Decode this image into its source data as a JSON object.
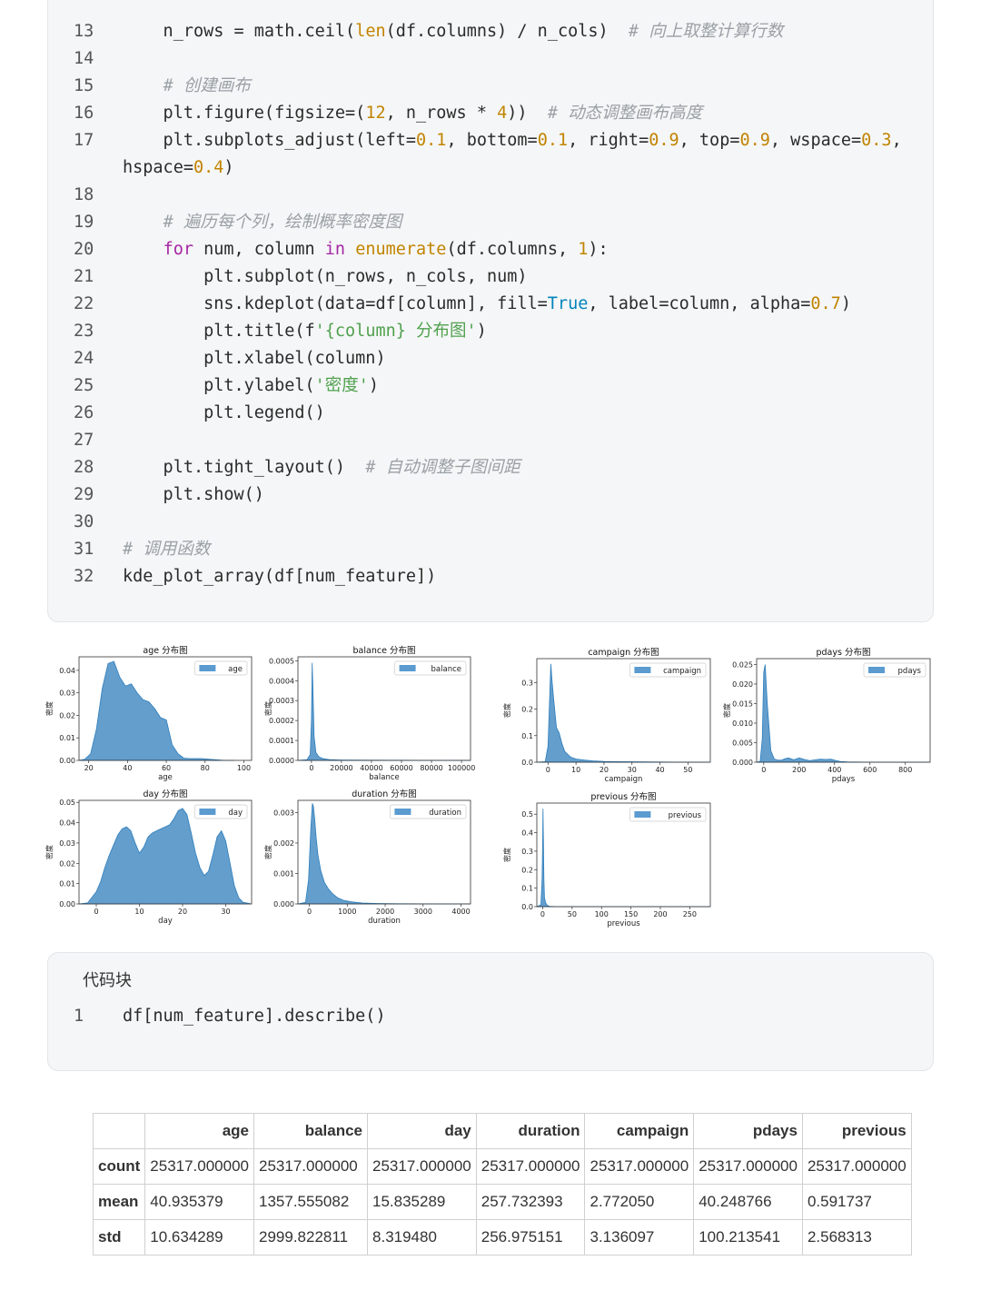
{
  "code_top": {
    "lines": [
      {
        "n": "13",
        "t": "    n_rows = math.ceil(len(df.columns) / n_cols)  # 向上取整计算行数"
      },
      {
        "n": "14",
        "t": ""
      },
      {
        "n": "15",
        "t": "    # 创建画布"
      },
      {
        "n": "16",
        "t": "    plt.figure(figsize=(12, n_rows * 4))  # 动态调整画布高度"
      },
      {
        "n": "17",
        "t": "    plt.subplots_adjust(left=0.1, bottom=0.1, right=0.9, top=0.9, wspace=0.3,"
      },
      {
        "n": "",
        "t": "hspace=0.4)"
      },
      {
        "n": "18",
        "t": ""
      },
      {
        "n": "19",
        "t": "    # 遍历每个列，绘制概率密度图"
      },
      {
        "n": "20",
        "t": "    for num, column in enumerate(df.columns, 1):"
      },
      {
        "n": "21",
        "t": "        plt.subplot(n_rows, n_cols, num)"
      },
      {
        "n": "22",
        "t": "        sns.kdeplot(data=df[column], fill=True, label=column, alpha=0.7)"
      },
      {
        "n": "23",
        "t": "        plt.title(f'{column} 分布图')"
      },
      {
        "n": "24",
        "t": "        plt.xlabel(column)"
      },
      {
        "n": "25",
        "t": "        plt.ylabel('密度')"
      },
      {
        "n": "26",
        "t": "        plt.legend()"
      },
      {
        "n": "27",
        "t": ""
      },
      {
        "n": "28",
        "t": "    plt.tight_layout()  # 自动调整子图间距"
      },
      {
        "n": "29",
        "t": "    plt.show()"
      },
      {
        "n": "30",
        "t": ""
      },
      {
        "n": "31",
        "t": "# 调用函数"
      },
      {
        "n": "32",
        "t": "kde_plot_array(df[num_feature])"
      }
    ]
  },
  "code_bottom": {
    "title": "代码块",
    "lines": [
      {
        "n": "1",
        "t": "df[num_feature].describe()"
      }
    ]
  },
  "colors": {
    "fill": "#2f7ebc",
    "legend_patch": "#5b9bd0"
  },
  "chart_data": [
    {
      "type": "area",
      "title": "age 分布图",
      "xlabel": "age",
      "ylabel": "密度",
      "legend": "age",
      "xlim": [
        15,
        104
      ],
      "ylim": [
        0,
        0.046
      ],
      "xticks": [
        20,
        40,
        60,
        80,
        100
      ],
      "yticks": [
        "0.00",
        "0.01",
        "0.02",
        "0.03",
        "0.04"
      ],
      "x": [
        15,
        18,
        21,
        24,
        27,
        30,
        33,
        36,
        39,
        42,
        45,
        48,
        51,
        54,
        57,
        60,
        63,
        66,
        69,
        72,
        75,
        78,
        81,
        84,
        87,
        90,
        95
      ],
      "y": [
        0,
        0.0005,
        0.003,
        0.014,
        0.032,
        0.043,
        0.044,
        0.037,
        0.033,
        0.034,
        0.03,
        0.027,
        0.026,
        0.023,
        0.019,
        0.018,
        0.007,
        0.003,
        0.001,
        0.0008,
        0.0008,
        0.0008,
        0.0006,
        0.0004,
        0.0002,
        0,
        0
      ]
    },
    {
      "type": "area",
      "title": "balance 分布图",
      "xlabel": "balance",
      "ylabel": "密度",
      "legend": "balance",
      "xlim": [
        -9000,
        106000
      ],
      "ylim": [
        0,
        0.00052
      ],
      "xticks": [
        0,
        20000,
        40000,
        60000,
        80000,
        100000
      ],
      "yticks": [
        "0.0000",
        "0.0001",
        "0.0002",
        "0.0003",
        "0.0004",
        "0.0005"
      ],
      "x": [
        -9000,
        -3000,
        -800,
        0,
        500,
        1000,
        1800,
        3000,
        5000,
        8000,
        12000,
        20000,
        40000,
        70000,
        106000
      ],
      "y": [
        0,
        3e-06,
        3e-05,
        0.0002,
        0.00049,
        0.00036,
        0.00012,
        4e-05,
        1.8e-05,
        8e-06,
        4e-06,
        2e-06,
        1e-06,
        4e-07,
        0
      ]
    },
    {
      "type": "area",
      "title": "campaign 分布图",
      "xlabel": "campaign",
      "ylabel": "密度",
      "legend": "campaign",
      "xlim": [
        -4,
        58
      ],
      "ylim": [
        0,
        0.39
      ],
      "xticks": [
        0,
        10,
        20,
        30,
        40,
        50
      ],
      "yticks": [
        "0.0",
        "0.1",
        "0.2",
        "0.3"
      ],
      "x": [
        -4,
        -1,
        0,
        1,
        1.5,
        2,
        3,
        4,
        5,
        6,
        8,
        10,
        13,
        16,
        20,
        25,
        35,
        45,
        58
      ],
      "y": [
        0,
        0.002,
        0.06,
        0.37,
        0.3,
        0.24,
        0.13,
        0.11,
        0.07,
        0.04,
        0.02,
        0.012,
        0.008,
        0.005,
        0.003,
        0.002,
        0.001,
        0.0005,
        0
      ]
    },
    {
      "type": "area",
      "title": "pdays 分布图",
      "xlabel": "pdays",
      "ylabel": "密度",
      "legend": "pdays",
      "xlim": [
        -40,
        940
      ],
      "ylim": [
        0,
        0.0265
      ],
      "xticks": [
        0,
        200,
        400,
        600,
        800
      ],
      "yticks": [
        "0.000",
        "0.005",
        "0.010",
        "0.015",
        "0.020",
        "0.025"
      ],
      "x": [
        -40,
        -20,
        -8,
        0,
        8,
        20,
        40,
        60,
        80,
        100,
        120,
        140,
        170,
        200,
        230,
        260,
        290,
        320,
        350,
        380,
        400,
        430,
        470,
        520,
        600,
        940
      ],
      "y": [
        0,
        0.0002,
        0.006,
        0.023,
        0.025,
        0.015,
        0.003,
        0.0008,
        0.0005,
        0.0005,
        0.0009,
        0.0011,
        0.0006,
        0.0011,
        0.0007,
        0.0004,
        0.0006,
        0.0008,
        0.0007,
        0.0008,
        0.0005,
        0.0002,
        0.0001,
        5e-05,
        0,
        0
      ]
    },
    {
      "type": "area",
      "title": "day 分布图",
      "xlabel": "day",
      "ylabel": "密度",
      "legend": "day",
      "xlim": [
        -4,
        36
      ],
      "ylim": [
        0,
        0.051
      ],
      "xticks": [
        0,
        10,
        20,
        30
      ],
      "yticks": [
        "0.00",
        "0.01",
        "0.02",
        "0.03",
        "0.04",
        "0.05"
      ],
      "x": [
        -4,
        -2,
        0,
        1,
        2,
        3,
        4,
        5,
        6,
        7,
        8,
        9,
        10,
        11,
        12,
        13,
        14,
        15,
        16,
        17,
        18,
        19,
        20,
        21,
        22,
        23,
        24,
        25,
        26,
        27,
        28,
        29,
        30,
        31,
        32,
        33,
        34,
        36
      ],
      "y": [
        0,
        0.0005,
        0.006,
        0.011,
        0.018,
        0.024,
        0.029,
        0.034,
        0.037,
        0.038,
        0.036,
        0.03,
        0.025,
        0.028,
        0.033,
        0.035,
        0.036,
        0.037,
        0.038,
        0.039,
        0.042,
        0.046,
        0.047,
        0.044,
        0.035,
        0.025,
        0.018,
        0.014,
        0.016,
        0.024,
        0.033,
        0.036,
        0.031,
        0.02,
        0.009,
        0.003,
        0.0008,
        0
      ]
    },
    {
      "type": "area",
      "title": "duration 分布图",
      "xlabel": "duration",
      "ylabel": "密度",
      "legend": "duration",
      "xlim": [
        -300,
        4250
      ],
      "ylim": [
        0,
        0.0034
      ],
      "xticks": [
        0,
        1000,
        2000,
        3000,
        4000
      ],
      "yticks": [
        "0.000",
        "0.001",
        "0.002",
        "0.003"
      ],
      "x": [
        -300,
        -100,
        -20,
        40,
        80,
        110,
        140,
        180,
        230,
        300,
        400,
        500,
        600,
        750,
        900,
        1100,
        1400,
        1800,
        2300,
        3000,
        4250
      ],
      "y": [
        0,
        5e-05,
        0.0008,
        0.0025,
        0.0033,
        0.0032,
        0.0028,
        0.0022,
        0.0016,
        0.0011,
        0.0007,
        0.0005,
        0.00035,
        0.0002,
        0.00012,
        7e-05,
        3e-05,
        1.5e-05,
        7e-06,
        2e-06,
        0
      ]
    },
    {
      "type": "area",
      "title": "previous 分布图",
      "xlabel": "previous",
      "ylabel": "密度",
      "legend": "previous",
      "xlim": [
        -10,
        285
      ],
      "ylim": [
        0,
        0.56
      ],
      "xticks": [
        0,
        50,
        100,
        150,
        200,
        250
      ],
      "yticks": [
        "0.0",
        "0.1",
        "0.2",
        "0.3",
        "0.4",
        "0.5"
      ],
      "x": [
        -10,
        -3,
        -1,
        0,
        0.5,
        1,
        2,
        3,
        5,
        8,
        12,
        20,
        40,
        285
      ],
      "y": [
        0,
        0.01,
        0.15,
        0.38,
        0.53,
        0.42,
        0.15,
        0.05,
        0.02,
        0.006,
        0.002,
        0.0005,
        0,
        0
      ]
    }
  ],
  "describe_table": {
    "columns": [
      "",
      "age",
      "balance",
      "day",
      "duration",
      "campaign",
      "pdays",
      "previous"
    ],
    "rows": [
      {
        "label": "count",
        "values": [
          "25317.000000",
          "25317.000000",
          "25317.000000",
          "25317.000000",
          "25317.000000",
          "25317.000000",
          "25317.000000"
        ]
      },
      {
        "label": "mean",
        "values": [
          "40.935379",
          "1357.555082",
          "15.835289",
          "257.732393",
          "2.772050",
          "40.248766",
          "0.591737"
        ]
      },
      {
        "label": "std",
        "values": [
          "10.634289",
          "2999.822811",
          "8.319480",
          "256.975151",
          "3.136097",
          "100.213541",
          "2.568313"
        ]
      }
    ]
  }
}
